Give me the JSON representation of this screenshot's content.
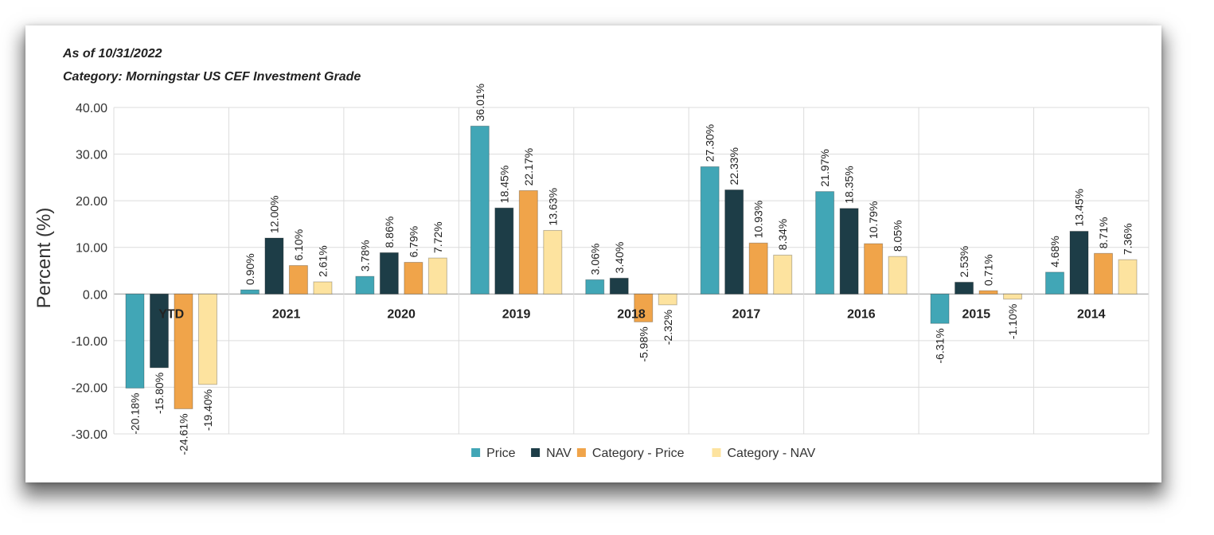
{
  "header": {
    "as_of": "As of 10/31/2022",
    "category": "Category: Morningstar US CEF Investment Grade"
  },
  "chart_data": {
    "type": "bar",
    "title": "",
    "xlabel": "",
    "ylabel": "Percent (%)",
    "ylim": [
      -30,
      40
    ],
    "yticks": [
      "40.00",
      "30.00",
      "20.00",
      "10.00",
      "0.00",
      "-10.00",
      "-20.00",
      "-30.00"
    ],
    "ytick_values": [
      40,
      30,
      20,
      10,
      0,
      -10,
      -20,
      -30
    ],
    "grid": true,
    "legend_position": "bottom-center",
    "categories": [
      "YTD",
      "2021",
      "2020",
      "2019",
      "2018",
      "2017",
      "2016",
      "2015",
      "2014"
    ],
    "series": [
      {
        "name": "Price",
        "color": "#41a6b6",
        "values": [
          -20.18,
          0.9,
          3.78,
          36.01,
          3.06,
          27.3,
          21.97,
          -6.31,
          4.68
        ],
        "labels": [
          "-20.18%",
          "0.90%",
          "3.78%",
          "36.01%",
          "3.06%",
          "27.30%",
          "21.97%",
          "-6.31%",
          "4.68%"
        ]
      },
      {
        "name": "NAV",
        "color": "#1d3d47",
        "values": [
          -15.8,
          12.0,
          8.86,
          18.45,
          3.4,
          22.33,
          18.35,
          2.53,
          13.45
        ],
        "labels": [
          "-15.80%",
          "12.00%",
          "8.86%",
          "18.45%",
          "3.40%",
          "22.33%",
          "18.35%",
          "2.53%",
          "13.45%"
        ]
      },
      {
        "name": "Category - Price",
        "color": "#f0a44a",
        "values": [
          -24.61,
          6.1,
          6.79,
          22.17,
          -5.98,
          10.93,
          10.79,
          0.71,
          8.71
        ],
        "labels": [
          "-24.61%",
          "6.10%",
          "6.79%",
          "22.17%",
          "-5.98%",
          "10.93%",
          "10.79%",
          "0.71%",
          "8.71%"
        ]
      },
      {
        "name": "Category - NAV",
        "color": "#fde39f",
        "values": [
          -19.4,
          2.61,
          7.72,
          13.63,
          -2.32,
          8.34,
          8.05,
          -1.1,
          7.36
        ],
        "labels": [
          "-19.40%",
          "2.61%",
          "7.72%",
          "13.63%",
          "-2.32%",
          "8.34%",
          "8.05%",
          "-1.10%",
          "7.36%"
        ]
      }
    ]
  }
}
